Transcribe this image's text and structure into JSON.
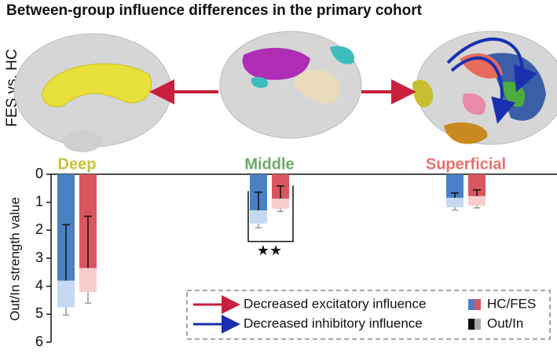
{
  "chart_data": {
    "type": "bar",
    "title": "Between-group influence differences in the primary cohort",
    "side_label": "FES vs. HC",
    "y_label": "Out/In strength value",
    "ylim": [
      0,
      6
    ],
    "yticks": [
      0,
      1,
      2,
      3,
      4,
      5,
      6
    ],
    "inverted": true,
    "groups": [
      {
        "label": "Deep",
        "color": "#c9c23a",
        "bars": [
          {
            "color": "#4a80c4",
            "light_color": "#c6d9f1",
            "out": 3.8,
            "out_error": 2.0,
            "in": 4.75,
            "in_error": 0.28
          },
          {
            "color": "#d9555f",
            "light_color": "#f8cccc",
            "out": 3.35,
            "out_error": 1.85,
            "in": 4.2,
            "in_error": 0.4
          }
        ]
      },
      {
        "label": "Middle",
        "color": "#6aaa6a",
        "bars": [
          {
            "color": "#4a80c4",
            "light_color": "#c6d9f1",
            "out": 1.29,
            "out_error": 0.65,
            "in": 1.76,
            "in_error": 0.15
          },
          {
            "color": "#d9555f",
            "light_color": "#f8cccc",
            "out": 0.87,
            "out_error": 0.45,
            "in": 1.23,
            "in_error": 0.1
          }
        ]
      },
      {
        "label": "Superficial",
        "color": "#e8706a",
        "bars": [
          {
            "color": "#4a80c4",
            "light_color": "#c6d9f1",
            "out": 0.84,
            "out_error": 0.17,
            "in": 1.18,
            "in_error": 0.1
          },
          {
            "color": "#d9555f",
            "light_color": "#f8cccc",
            "out": 0.78,
            "out_error": 0.22,
            "in": 1.12,
            "in_error": 0.08
          }
        ]
      }
    ],
    "significance": "★★",
    "legend": {
      "arrows": [
        {
          "label": "Decreased excitatory influence",
          "color": "#c8203c"
        },
        {
          "label": "Decreased inhibitory influence",
          "color": "#1a2fb0"
        }
      ],
      "swatches": [
        {
          "label": "HC/FES",
          "colors": [
            "#4a80c4",
            "#d9555f"
          ]
        },
        {
          "label": "Out/In",
          "colors": [
            "#111111",
            "#aaaaaa"
          ]
        }
      ]
    }
  }
}
